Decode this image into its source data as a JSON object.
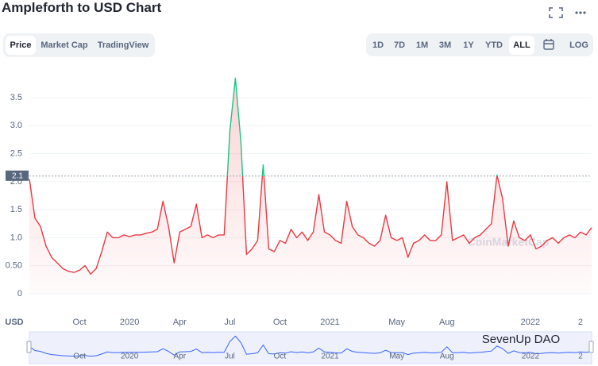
{
  "header": {
    "title": "Ampleforth to USD Chart"
  },
  "tabs": [
    "Price",
    "Market Cap",
    "TradingView"
  ],
  "selected_tab": "Price",
  "ranges": [
    "1D",
    "7D",
    "1M",
    "3M",
    "1Y",
    "YTD",
    "ALL",
    "LOG"
  ],
  "selected_range": "ALL",
  "chart_data": {
    "type": "line",
    "y_axis_label": "USD",
    "categories": [
      null,
      null,
      null,
      null,
      null,
      null,
      null,
      null,
      null,
      "Oct",
      null,
      null,
      null,
      null,
      null,
      null,
      null,
      null,
      "2020",
      null,
      null,
      null,
      null,
      null,
      null,
      null,
      null,
      "Apr",
      null,
      null,
      null,
      null,
      null,
      null,
      null,
      null,
      "Jul",
      null,
      null,
      null,
      null,
      null,
      null,
      null,
      null,
      "Oct",
      null,
      null,
      null,
      null,
      null,
      null,
      null,
      null,
      "2021",
      null,
      null,
      null,
      null,
      null,
      null,
      null,
      null,
      null,
      null,
      null,
      "May",
      null,
      null,
      null,
      null,
      null,
      null,
      null,
      null,
      "Aug",
      null,
      null,
      null,
      null,
      null,
      null,
      null,
      null,
      null,
      null,
      null,
      null,
      null,
      null,
      "2022",
      null,
      null,
      null,
      null,
      null,
      null,
      null,
      null,
      "2",
      null,
      null
    ],
    "values": [
      2.05,
      1.35,
      1.2,
      0.85,
      0.65,
      0.55,
      0.45,
      0.4,
      0.38,
      0.42,
      0.5,
      0.35,
      0.45,
      0.75,
      1.1,
      1.0,
      1.0,
      1.05,
      1.02,
      1.05,
      1.05,
      1.08,
      1.1,
      1.15,
      1.65,
      1.2,
      0.55,
      1.1,
      1.15,
      1.2,
      1.6,
      1.0,
      1.05,
      1.0,
      1.05,
      1.05,
      2.9,
      3.85,
      2.7,
      0.7,
      0.8,
      0.95,
      2.3,
      0.8,
      0.75,
      0.95,
      0.9,
      1.15,
      1.0,
      1.1,
      0.95,
      1.1,
      1.77,
      1.1,
      1.05,
      0.95,
      0.9,
      1.65,
      1.2,
      1.05,
      1.0,
      0.9,
      0.85,
      0.95,
      1.4,
      1.0,
      0.95,
      1.0,
      0.65,
      0.9,
      0.95,
      1.05,
      0.95,
      0.95,
      1.05,
      2.0,
      0.95,
      1.0,
      1.05,
      0.9,
      1.0,
      1.05,
      1.15,
      1.25,
      2.12,
      1.7,
      0.85,
      1.3,
      1.0,
      0.95,
      1.05,
      0.8,
      0.85,
      0.95,
      1.0,
      0.9,
      1.0,
      1.05,
      1.0,
      1.1,
      1.05,
      1.18
    ],
    "ylim": [
      -0.37,
      4.04
    ],
    "yticks": [
      0,
      {
        "value": 0.5,
        "label": "0.50"
      },
      {
        "value": 1,
        "label": "1.0"
      },
      1.5,
      {
        "value": 2,
        "label": "2.0"
      },
      2.5,
      {
        "value": 3,
        "label": "3.0"
      },
      3.5
    ],
    "current_price": 2.1,
    "color_above": "#16c784",
    "color_below": "#ea3943",
    "grid": true,
    "watermark": "CoinMarketCap"
  },
  "overlay_watermark": "SevenUp DAO"
}
